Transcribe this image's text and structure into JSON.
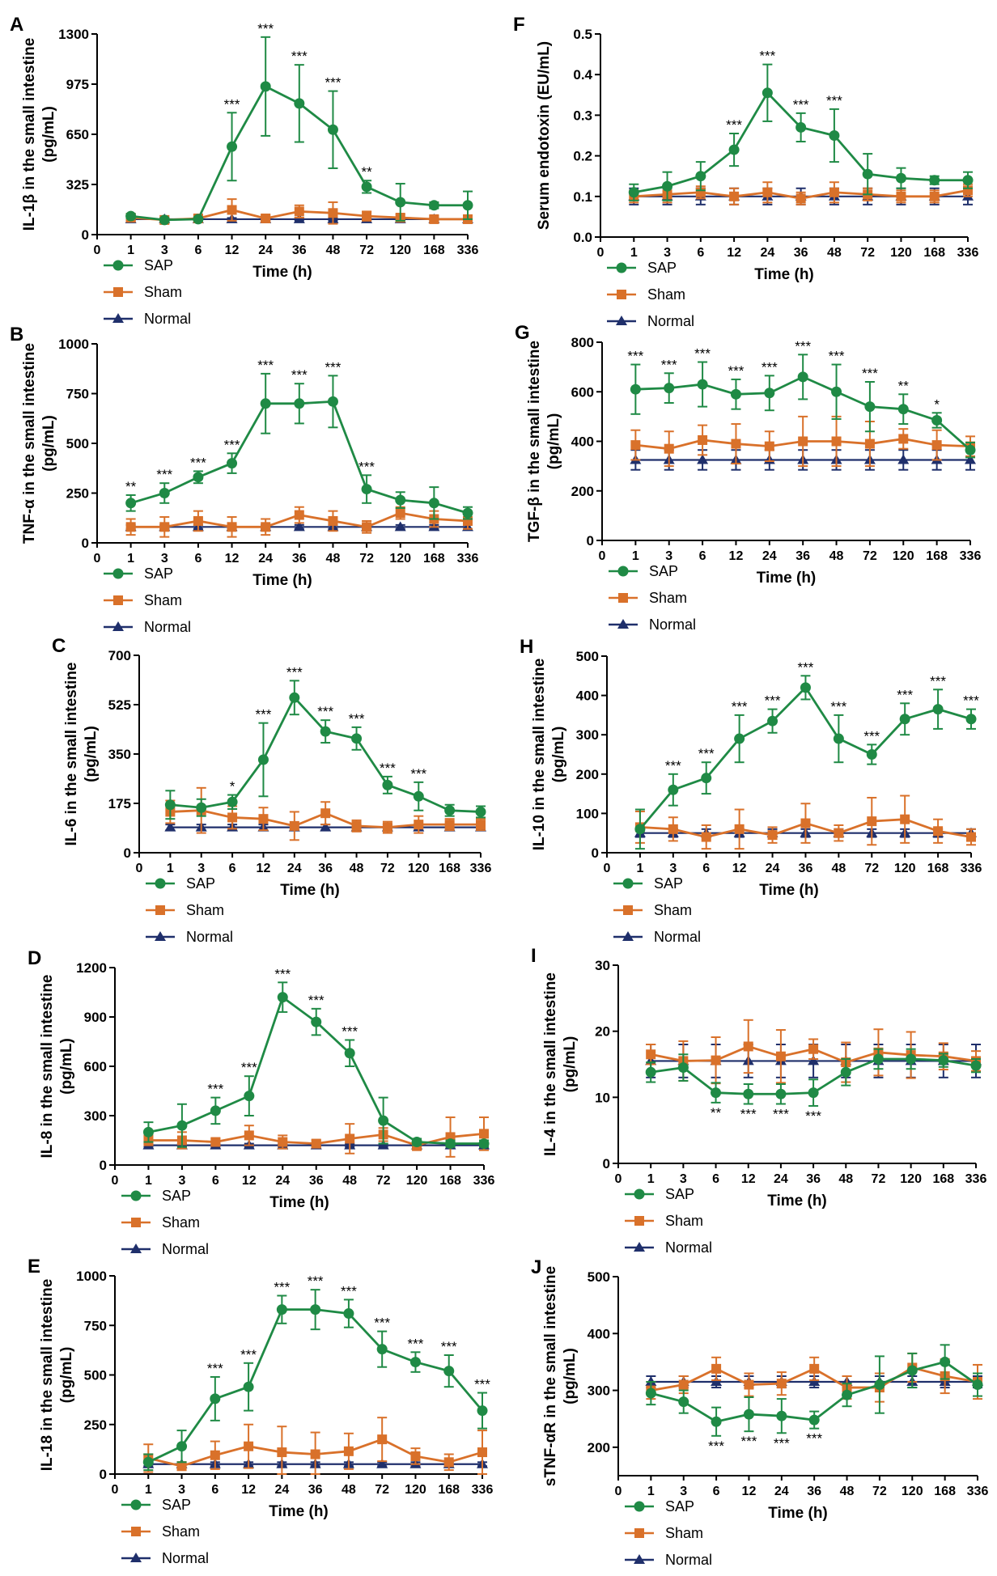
{
  "colors": {
    "SAP": "#1f8a45",
    "Sham": "#d9712a",
    "Normal": "#1f2f6b",
    "axis": "#000000"
  },
  "time_labels": [
    "0",
    "1",
    "3",
    "6",
    "12",
    "24",
    "36",
    "48",
    "72",
    "120",
    "168",
    "336"
  ],
  "chart_data": [
    {
      "panel": "A",
      "type": "line",
      "ylabel_line1": "IL-1β in the small intestine",
      "ylabel_line2": "(pg/mL)",
      "xlabel": "Time (h)",
      "ylim": [
        0,
        1300
      ],
      "yticks": [
        0,
        325,
        650,
        975,
        1300
      ],
      "series": [
        {
          "name": "SAP",
          "values": [
            120,
            95,
            100,
            570,
            960,
            850,
            680,
            310,
            210,
            190,
            190
          ],
          "err": [
            15,
            10,
            10,
            220,
            320,
            250,
            250,
            40,
            120,
            20,
            90
          ]
        },
        {
          "name": "Sham",
          "values": [
            110,
            95,
            105,
            160,
            105,
            150,
            140,
            120,
            110,
            100,
            100
          ],
          "err": [
            20,
            10,
            15,
            70,
            20,
            40,
            70,
            30,
            20,
            20,
            25
          ]
        },
        {
          "name": "Normal",
          "values": [
            100,
            100,
            100,
            100,
            100,
            100,
            100,
            100,
            100,
            100,
            100
          ],
          "err": [
            8,
            8,
            8,
            8,
            8,
            8,
            8,
            8,
            8,
            8,
            8
          ]
        }
      ],
      "sig": [
        "",
        "",
        "",
        "***",
        "***",
        "***",
        "***",
        "**",
        "",
        "",
        ""
      ]
    },
    {
      "panel": "B",
      "type": "line",
      "ylabel_line1": "TNF-α in the small intestine",
      "ylabel_line2": "(pg/mL)",
      "xlabel": "Time (h)",
      "ylim": [
        0,
        1000
      ],
      "yticks": [
        0,
        250,
        500,
        750,
        1000
      ],
      "series": [
        {
          "name": "SAP",
          "values": [
            200,
            250,
            330,
            400,
            700,
            700,
            710,
            270,
            215,
            200,
            150
          ],
          "err": [
            40,
            50,
            30,
            50,
            150,
            100,
            130,
            70,
            40,
            80,
            30
          ]
        },
        {
          "name": "Sham",
          "values": [
            80,
            80,
            110,
            80,
            80,
            140,
            110,
            80,
            150,
            120,
            110
          ],
          "err": [
            40,
            50,
            50,
            50,
            40,
            40,
            50,
            30,
            30,
            40,
            40
          ]
        },
        {
          "name": "Normal",
          "values": [
            80,
            80,
            80,
            80,
            80,
            80,
            80,
            80,
            80,
            80,
            80
          ],
          "err": [
            10,
            10,
            10,
            10,
            10,
            10,
            10,
            10,
            10,
            10,
            10
          ]
        }
      ],
      "sig": [
        "**",
        "***",
        "***",
        "***",
        "***",
        "***",
        "***",
        "***",
        "",
        "",
        ""
      ]
    },
    {
      "panel": "C",
      "type": "line",
      "ylabel_line1": "IL-6 in the small intestine",
      "ylabel_line2": "(pg/mL)",
      "xlabel": "Time (h)",
      "ylim": [
        0,
        700
      ],
      "yticks": [
        0,
        175,
        350,
        525,
        700
      ],
      "series": [
        {
          "name": "SAP",
          "values": [
            170,
            160,
            180,
            330,
            550,
            430,
            405,
            240,
            200,
            150,
            145
          ],
          "err": [
            50,
            30,
            25,
            130,
            60,
            40,
            40,
            30,
            50,
            20,
            20
          ]
        },
        {
          "name": "Sham",
          "values": [
            145,
            150,
            125,
            120,
            95,
            140,
            95,
            90,
            100,
            100,
            100
          ],
          "err": [
            40,
            80,
            40,
            40,
            50,
            40,
            20,
            20,
            30,
            20,
            20
          ]
        },
        {
          "name": "Normal",
          "values": [
            90,
            90,
            90,
            90,
            90,
            90,
            90,
            90,
            90,
            90,
            90
          ],
          "err": [
            10,
            10,
            10,
            10,
            10,
            10,
            10,
            10,
            10,
            10,
            10
          ]
        }
      ],
      "sig": [
        "",
        "",
        "*",
        "***",
        "***",
        "***",
        "***",
        "***",
        "***",
        "",
        ""
      ]
    },
    {
      "panel": "D",
      "type": "line",
      "ylabel_line1": "IL-8 in the small intestine",
      "ylabel_line2": "(pg/mL)",
      "xlabel": "Time (h)",
      "ylim": [
        0,
        1200
      ],
      "yticks": [
        0,
        300,
        600,
        900,
        1200
      ],
      "series": [
        {
          "name": "SAP",
          "values": [
            200,
            240,
            330,
            420,
            1020,
            870,
            680,
            270,
            140,
            130,
            130
          ],
          "err": [
            60,
            130,
            80,
            120,
            90,
            80,
            80,
            140,
            20,
            20,
            20
          ]
        },
        {
          "name": "Sham",
          "values": [
            150,
            150,
            140,
            180,
            140,
            130,
            160,
            185,
            120,
            170,
            190
          ],
          "err": [
            30,
            50,
            20,
            60,
            40,
            20,
            90,
            40,
            30,
            120,
            100
          ]
        },
        {
          "name": "Normal",
          "values": [
            120,
            120,
            120,
            120,
            120,
            120,
            120,
            120,
            120,
            120,
            120
          ],
          "err": [
            10,
            10,
            10,
            10,
            10,
            10,
            10,
            10,
            10,
            10,
            10
          ]
        }
      ],
      "sig": [
        "",
        "",
        "***",
        "***",
        "***",
        "***",
        "***",
        "",
        "",
        "",
        ""
      ]
    },
    {
      "panel": "E",
      "type": "line",
      "ylabel_line1": "IL-18 in the small intestine",
      "ylabel_line2": "(pg/mL)",
      "xlabel": "Time (h)",
      "ylim": [
        0,
        1000
      ],
      "yticks": [
        0,
        250,
        500,
        750,
        1000
      ],
      "series": [
        {
          "name": "SAP",
          "values": [
            60,
            140,
            380,
            440,
            830,
            830,
            810,
            630,
            565,
            520,
            320
          ],
          "err": [
            40,
            80,
            110,
            120,
            70,
            100,
            70,
            90,
            50,
            80,
            90
          ]
        },
        {
          "name": "Sham",
          "values": [
            80,
            40,
            95,
            140,
            110,
            100,
            115,
            175,
            90,
            60,
            110
          ],
          "err": [
            70,
            20,
            70,
            110,
            130,
            110,
            90,
            110,
            40,
            40,
            110
          ]
        },
        {
          "name": "Normal",
          "values": [
            50,
            50,
            50,
            50,
            50,
            50,
            50,
            50,
            50,
            50,
            50
          ],
          "err": [
            10,
            10,
            10,
            10,
            10,
            10,
            10,
            10,
            10,
            10,
            10
          ]
        }
      ],
      "sig": [
        "",
        "",
        "***",
        "***",
        "***",
        "***",
        "***",
        "***",
        "***",
        "***",
        "***"
      ]
    },
    {
      "panel": "F",
      "type": "line",
      "ylabel_line1": "Serum endotoxin (EU/mL)",
      "ylabel_line2": "",
      "xlabel": "Time (h)",
      "ylim": [
        0,
        0.5
      ],
      "yticks": [
        0.0,
        0.1,
        0.2,
        0.3,
        0.4,
        0.5
      ],
      "ytick_labels": [
        "0.0",
        "0.1",
        "0.2",
        "0.3",
        "0.4",
        "0.5"
      ],
      "series": [
        {
          "name": "SAP",
          "values": [
            0.11,
            0.125,
            0.15,
            0.215,
            0.355,
            0.27,
            0.25,
            0.155,
            0.145,
            0.14,
            0.14
          ],
          "err": [
            0.02,
            0.035,
            0.035,
            0.04,
            0.07,
            0.035,
            0.065,
            0.05,
            0.025,
            0.01,
            0.02
          ]
        },
        {
          "name": "Sham",
          "values": [
            0.1,
            0.105,
            0.11,
            0.1,
            0.11,
            0.095,
            0.11,
            0.105,
            0.1,
            0.1,
            0.115
          ],
          "err": [
            0.015,
            0.02,
            0.015,
            0.02,
            0.025,
            0.015,
            0.025,
            0.015,
            0.015,
            0.015,
            0.015
          ]
        },
        {
          "name": "Normal",
          "values": [
            0.1,
            0.1,
            0.1,
            0.1,
            0.1,
            0.1,
            0.1,
            0.1,
            0.1,
            0.1,
            0.1
          ],
          "err": [
            0.02,
            0.02,
            0.02,
            0.02,
            0.02,
            0.02,
            0.02,
            0.02,
            0.02,
            0.02,
            0.02
          ]
        }
      ],
      "sig": [
        "",
        "",
        "",
        "***",
        "***",
        "***",
        "***",
        "",
        "",
        "",
        ""
      ]
    },
    {
      "panel": "G",
      "type": "line",
      "ylabel_line1": "TGF-β in the small intestine",
      "ylabel_line2": "(pg/mL)",
      "xlabel": "Time (h)",
      "ylim": [
        0,
        800
      ],
      "yticks": [
        0,
        200,
        400,
        600,
        800
      ],
      "series": [
        {
          "name": "SAP",
          "values": [
            610,
            615,
            630,
            590,
            595,
            660,
            600,
            540,
            530,
            485,
            365
          ],
          "err": [
            100,
            60,
            90,
            60,
            70,
            90,
            110,
            100,
            60,
            30,
            30
          ]
        },
        {
          "name": "Sham",
          "values": [
            385,
            370,
            405,
            390,
            380,
            400,
            400,
            390,
            410,
            385,
            380
          ],
          "err": [
            60,
            70,
            60,
            80,
            60,
            100,
            100,
            90,
            40,
            60,
            40
          ]
        },
        {
          "name": "Normal",
          "values": [
            325,
            325,
            325,
            325,
            325,
            325,
            325,
            325,
            325,
            325,
            325
          ],
          "err": [
            40,
            40,
            40,
            40,
            40,
            40,
            40,
            40,
            40,
            40,
            40
          ]
        }
      ],
      "sig": [
        "***",
        "***",
        "***",
        "***",
        "***",
        "***",
        "***",
        "***",
        "**",
        "*",
        ""
      ]
    },
    {
      "panel": "H",
      "type": "line",
      "ylabel_line1": "IL-10 in the small intestine",
      "ylabel_line2": "(pg/mL)",
      "xlabel": "Time (h)",
      "ylim": [
        0,
        500
      ],
      "yticks": [
        0,
        100,
        200,
        300,
        400,
        500
      ],
      "series": [
        {
          "name": "SAP",
          "values": [
            60,
            160,
            190,
            290,
            335,
            420,
            290,
            250,
            340,
            365,
            340
          ],
          "err": [
            50,
            40,
            40,
            60,
            30,
            30,
            60,
            25,
            40,
            50,
            25
          ]
        },
        {
          "name": "Sham",
          "values": [
            65,
            60,
            40,
            60,
            45,
            75,
            50,
            80,
            85,
            55,
            40
          ],
          "err": [
            40,
            30,
            30,
            50,
            20,
            50,
            20,
            60,
            60,
            30,
            20
          ]
        },
        {
          "name": "Normal",
          "values": [
            50,
            50,
            50,
            50,
            50,
            50,
            50,
            50,
            50,
            50,
            50
          ],
          "err": [
            10,
            10,
            10,
            10,
            10,
            10,
            10,
            10,
            10,
            10,
            10
          ]
        }
      ],
      "sig": [
        "",
        "***",
        "***",
        "***",
        "***",
        "***",
        "***",
        "***",
        "***",
        "***",
        "***"
      ]
    },
    {
      "panel": "I",
      "type": "line",
      "ylabel_line1": "IL-4 in the small intestine",
      "ylabel_line2": "(pg/mL)",
      "xlabel": "Time (h)",
      "ylim": [
        0,
        30
      ],
      "yticks": [
        0,
        10,
        20,
        30
      ],
      "series": [
        {
          "name": "SAP",
          "values": [
            13.8,
            14.5,
            10.7,
            10.5,
            10.5,
            10.7,
            13.8,
            15.8,
            15.8,
            15.6,
            14.8
          ],
          "err": [
            1.5,
            2,
            1.5,
            1.5,
            1.5,
            2,
            2,
            1.5,
            1.5,
            1,
            1
          ]
        },
        {
          "name": "Sham",
          "values": [
            16.5,
            15.5,
            15.6,
            17.7,
            16.2,
            17.3,
            15.3,
            16.8,
            16.4,
            16.2,
            15.5
          ],
          "err": [
            1.5,
            3,
            3.5,
            4,
            4,
            1.5,
            3,
            3.5,
            3.5,
            2,
            1.5
          ]
        },
        {
          "name": "Normal",
          "values": [
            15.5,
            15.5,
            15.5,
            15.5,
            15.5,
            15.5,
            15.5,
            15.5,
            15.5,
            15.5,
            15.5
          ],
          "err": [
            2.5,
            2.5,
            2.5,
            2.5,
            2.5,
            2.5,
            2.5,
            2.5,
            2.5,
            2.5,
            2.5
          ]
        }
      ],
      "sig_below": [
        "",
        "",
        "**",
        "***",
        "***",
        "***",
        "",
        "",
        "",
        "",
        ""
      ]
    },
    {
      "panel": "J",
      "type": "line",
      "ylabel_line1": "sTNF-αR in the small intestine",
      "ylabel_line2": "(pg/mL)",
      "xlabel": "Time (h)",
      "ylim": [
        150,
        500
      ],
      "yticks": [
        200,
        300,
        400,
        500
      ],
      "series": [
        {
          "name": "SAP",
          "values": [
            295,
            280,
            245,
            258,
            255,
            248,
            292,
            310,
            335,
            350,
            310
          ],
          "err": [
            20,
            20,
            25,
            30,
            30,
            15,
            20,
            50,
            30,
            30,
            20
          ]
        },
        {
          "name": "Sham",
          "values": [
            300,
            310,
            338,
            310,
            312,
            338,
            305,
            305,
            340,
            325,
            315
          ],
          "err": [
            15,
            15,
            20,
            20,
            20,
            20,
            20,
            25,
            25,
            30,
            30
          ]
        },
        {
          "name": "Normal",
          "values": [
            315,
            315,
            315,
            315,
            315,
            315,
            315,
            315,
            315,
            315,
            315
          ],
          "err": [
            10,
            10,
            10,
            10,
            10,
            10,
            10,
            10,
            10,
            10,
            10
          ]
        }
      ],
      "sig_below": [
        "",
        "",
        "***",
        "***",
        "***",
        "***",
        "",
        "",
        "",
        "",
        ""
      ]
    }
  ]
}
